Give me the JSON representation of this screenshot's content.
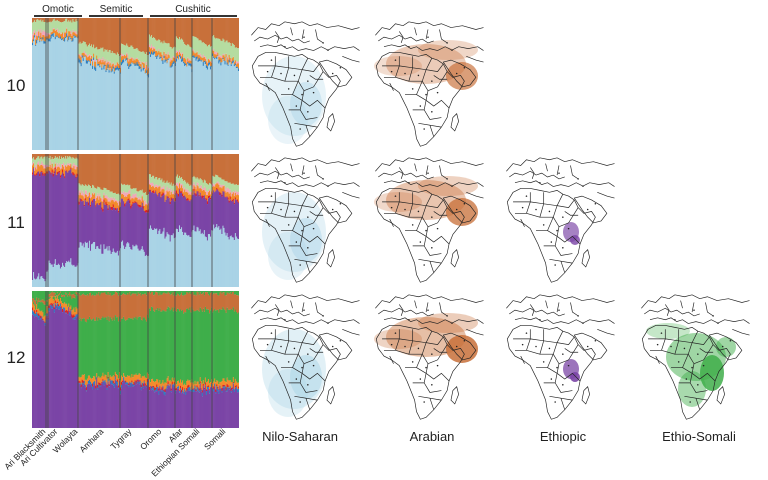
{
  "groups": [
    {
      "label": "Omotic"
    },
    {
      "label": "Semitic"
    },
    {
      "label": "Cushitic"
    }
  ],
  "k_values": [
    "10",
    "11",
    "12"
  ],
  "populations": [
    "Ari Blacksmith",
    "Ari Cultivator",
    "Wolayta",
    "Amhara",
    "Tygray",
    "Oromo",
    "Afar",
    "Ethiopian Somali",
    "Somali"
  ],
  "map_titles": [
    "Nilo-Saharan",
    "Arabian",
    "Ethiopic",
    "Ethio-Somali"
  ],
  "colors": {
    "nilo_saharan": "#a9d3e6",
    "arabian": "#c8703a",
    "ethiopic": "#7b45a6",
    "ethio_somali": "#3fae4a",
    "light_green": "#b5dca0",
    "pink": "#f2a7b8",
    "orange": "#f28b2c",
    "blue": "#2f7fc1",
    "red": "#e02020",
    "yellow": "#f5d64a"
  },
  "panels": [
    {
      "k": "10",
      "maps": [
        "nilo_saharan",
        "arabian"
      ]
    },
    {
      "k": "11",
      "maps": [
        "nilo_saharan",
        "arabian",
        "ethiopic"
      ]
    },
    {
      "k": "12",
      "maps": [
        "nilo_saharan",
        "arabian",
        "ethiopic",
        "ethio_somali"
      ]
    }
  ]
}
